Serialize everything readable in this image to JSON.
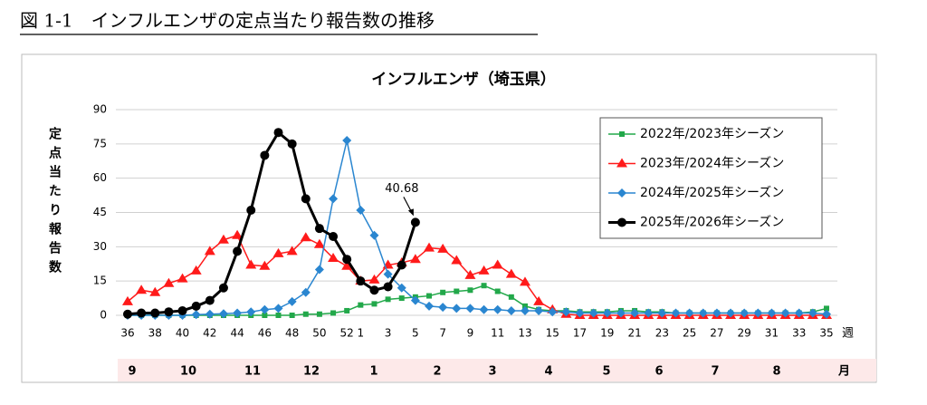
{
  "heading": "図 1-1　インフルエンザの定点当たり報告数の推移",
  "chart_data": {
    "type": "line",
    "title": "インフルエンザ（埼玉県）",
    "y_label": "定点当たり報告数",
    "x_unit": "週",
    "month_unit": "月",
    "months": [
      "9",
      "10",
      "11",
      "12",
      "1",
      "2",
      "3",
      "4",
      "5",
      "6",
      "7",
      "8"
    ],
    "categories": [
      36,
      null,
      38,
      null,
      40,
      null,
      42,
      null,
      44,
      null,
      46,
      null,
      48,
      null,
      50,
      null,
      52,
      1,
      null,
      3,
      null,
      5,
      null,
      7,
      null,
      9,
      null,
      11,
      null,
      13,
      null,
      15,
      null,
      17,
      null,
      19,
      null,
      21,
      null,
      23,
      null,
      25,
      null,
      27,
      null,
      29,
      null,
      31,
      null,
      33,
      null,
      35
    ],
    "ylim": [
      0,
      90
    ],
    "yticks": [
      0,
      15,
      30,
      45,
      60,
      75,
      90
    ],
    "grid": true,
    "legend": "upper right",
    "series": [
      {
        "name": "2022年/2023年シーズン",
        "color": "#22a84a",
        "marker": "square",
        "values": [
          0,
          0,
          0,
          0,
          0,
          0,
          0,
          0,
          0,
          0,
          0,
          0,
          0,
          0.5,
          0.5,
          1,
          2,
          4.5,
          5,
          7,
          7.5,
          8,
          8.5,
          10,
          10.5,
          11,
          13,
          10.5,
          8,
          4,
          2.5,
          2,
          2,
          1.5,
          1.5,
          1.5,
          2,
          2,
          1.5,
          1.5,
          1,
          1,
          1,
          1,
          1,
          1,
          1,
          1,
          1,
          1,
          1.5,
          3
        ]
      },
      {
        "name": "2023年/2024年シーズン",
        "color": "#ff1a1a",
        "marker": "triangle",
        "values": [
          6,
          11,
          10,
          14,
          16,
          19.5,
          28,
          33,
          35,
          22,
          21.5,
          27,
          28,
          34,
          31,
          25,
          21.5,
          15,
          15.5,
          22,
          23,
          24.5,
          29.5,
          29,
          24,
          17.5,
          19.5,
          22,
          18,
          14.5,
          6,
          2.5,
          0.5,
          0,
          0,
          0,
          0,
          0,
          0,
          0,
          0,
          0,
          0,
          0,
          0,
          0,
          0,
          0,
          0,
          0,
          0,
          0
        ]
      },
      {
        "name": "2024年/2025年シーズン",
        "color": "#2a86d0",
        "marker": "diamond",
        "values": [
          0,
          0,
          0,
          0,
          0,
          0.3,
          0.5,
          0.7,
          1,
          1.5,
          2.5,
          3,
          6,
          10,
          20,
          51,
          76.5,
          46,
          35,
          18,
          12,
          6.5,
          4,
          3.5,
          3,
          3,
          2.5,
          2.5,
          2,
          2,
          2,
          1.5,
          1.5,
          1,
          1,
          1,
          1,
          1,
          1,
          1,
          1,
          1,
          1,
          1,
          1,
          1,
          1,
          1,
          1,
          1,
          1,
          0.5
        ]
      },
      {
        "name": "2025年/2026年シーズン",
        "color": "#000000",
        "marker": "circle",
        "values": [
          0.5,
          1,
          1,
          1.5,
          2,
          4,
          6.5,
          12,
          28,
          46,
          70,
          80,
          75,
          51,
          38,
          34.5,
          24.5,
          15,
          11,
          12.5,
          22,
          40.68,
          null,
          null,
          null,
          null,
          null,
          null,
          null,
          null,
          null,
          null,
          null,
          null,
          null,
          null,
          null,
          null,
          null,
          null,
          null,
          null,
          null,
          null,
          null,
          null,
          null,
          null,
          null,
          null,
          null,
          null
        ]
      }
    ]
  }
}
